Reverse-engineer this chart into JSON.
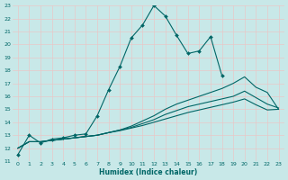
{
  "xlabel": "Humidex (Indice chaleur)",
  "background_color": "#c8e8e8",
  "grid_color": "#d4eded",
  "line_color": "#006666",
  "xlim": [
    -0.5,
    23.5
  ],
  "ylim": [
    11,
    23
  ],
  "series": [
    {
      "x": [
        0,
        1,
        2,
        3,
        4,
        5,
        6,
        7,
        8,
        9,
        10,
        11,
        12,
        13,
        14,
        15,
        16,
        17,
        18
      ],
      "y": [
        11.5,
        13.0,
        12.4,
        12.7,
        12.8,
        13.0,
        13.1,
        14.5,
        16.5,
        18.3,
        20.5,
        21.5,
        23.0,
        22.2,
        20.7,
        19.3,
        19.5,
        20.6,
        17.6
      ],
      "has_markers": true
    },
    {
      "x": [
        0,
        1,
        2,
        3,
        4,
        5,
        6,
        7,
        8,
        9,
        10,
        11,
        12,
        13,
        14,
        15,
        16,
        17,
        18,
        19,
        20,
        21,
        22,
        23
      ],
      "y": [
        12.0,
        12.5,
        12.5,
        12.6,
        12.7,
        12.8,
        12.9,
        13.0,
        13.2,
        13.4,
        13.7,
        14.1,
        14.5,
        15.0,
        15.4,
        15.7,
        16.0,
        16.3,
        16.6,
        17.0,
        17.5,
        16.7,
        16.3,
        15.0
      ],
      "has_markers": false
    },
    {
      "x": [
        0,
        1,
        2,
        3,
        4,
        5,
        6,
        7,
        8,
        9,
        10,
        11,
        12,
        13,
        14,
        15,
        16,
        17,
        18,
        19,
        20,
        21,
        22,
        23
      ],
      "y": [
        12.0,
        12.5,
        12.5,
        12.6,
        12.7,
        12.8,
        12.9,
        13.0,
        13.2,
        13.4,
        13.6,
        13.9,
        14.2,
        14.6,
        14.9,
        15.2,
        15.4,
        15.6,
        15.8,
        16.0,
        16.4,
        15.9,
        15.4,
        15.1
      ],
      "has_markers": false
    },
    {
      "x": [
        0,
        1,
        2,
        3,
        4,
        5,
        6,
        7,
        8,
        9,
        10,
        11,
        12,
        13,
        14,
        15,
        16,
        17,
        18,
        19,
        20,
        21,
        22,
        23
      ],
      "y": [
        12.0,
        12.5,
        12.5,
        12.6,
        12.7,
        12.8,
        12.9,
        13.0,
        13.2,
        13.35,
        13.55,
        13.75,
        14.0,
        14.25,
        14.5,
        14.75,
        14.95,
        15.15,
        15.35,
        15.55,
        15.8,
        15.35,
        14.95,
        15.0
      ],
      "has_markers": false
    }
  ]
}
